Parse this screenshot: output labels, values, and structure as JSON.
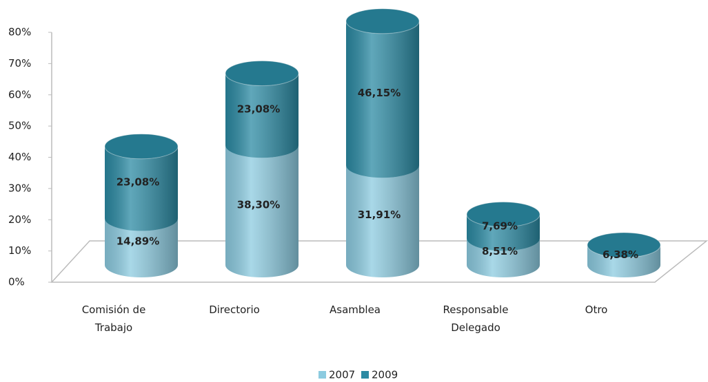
{
  "chart_data": {
    "type": "bar3d_stacked",
    "categories": [
      "Comisión de Trabajo",
      "Directorio",
      "Asamblea",
      "Responsable Delegado",
      "Otro"
    ],
    "series": [
      {
        "name": "2007",
        "color": "#8ccbe0",
        "values": [
          14.89,
          38.3,
          31.91,
          8.51,
          6.38
        ],
        "value_labels": [
          "14,89%",
          "38,30%",
          "31,91%",
          "8,51%",
          "6,38%"
        ]
      },
      {
        "name": "2009",
        "color": "#2b8aa3",
        "values": [
          23.08,
          23.08,
          46.15,
          7.69,
          0
        ],
        "value_labels": [
          "23,08%",
          "23,08%",
          "46,15%",
          "7,69%",
          null
        ]
      }
    ],
    "ylim": [
      0,
      80
    ],
    "yticks": [
      {
        "value": 0,
        "label": "0%"
      },
      {
        "value": 10,
        "label": "10%"
      },
      {
        "value": 20,
        "label": "20%"
      },
      {
        "value": 30,
        "label": "30%"
      },
      {
        "value": 40,
        "label": "40%"
      },
      {
        "value": 50,
        "label": "50%"
      },
      {
        "value": 60,
        "label": "60%"
      },
      {
        "value": 70,
        "label": "70%"
      },
      {
        "value": 80,
        "label": "80%"
      }
    ],
    "legend": "bottom"
  }
}
